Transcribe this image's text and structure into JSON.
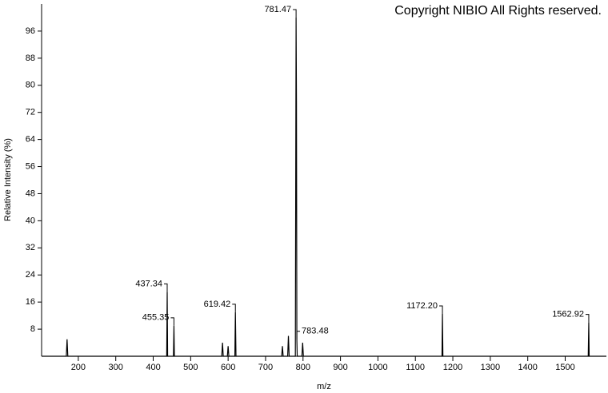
{
  "chart_data": {
    "type": "line",
    "watermark": "Copyright NIBIO All Rights reserved.",
    "x_label": "m/z",
    "y_label": "Relative Intensity (%)",
    "color": "#000000",
    "x": [
      102,
      168,
      170,
      172,
      436,
      437.34,
      438.5,
      454,
      455.35,
      456.5,
      583,
      585,
      587,
      598,
      600,
      602,
      618,
      619.42,
      621,
      743,
      745,
      747,
      759,
      761,
      763,
      779.5,
      780.5,
      781.47,
      782.5,
      783.48,
      784.5,
      797,
      799,
      801,
      1171,
      1172.2,
      1173.5,
      1561.5,
      1562.92,
      1564,
      1610
    ],
    "values": [
      0,
      0,
      5,
      0,
      0,
      19,
      0,
      0,
      9,
      0,
      0,
      4,
      0,
      0,
      3,
      0,
      0,
      13,
      0,
      0,
      3,
      0,
      0,
      6,
      0,
      0,
      50,
      100,
      75,
      5,
      0,
      0,
      4,
      0,
      0,
      12.5,
      0,
      0,
      10,
      0,
      0
    ],
    "annotations": [
      {
        "text": "437.34",
        "x": 437.34,
        "y": 19
      },
      {
        "text": "455.35",
        "x": 455.35,
        "y": 9
      },
      {
        "text": "619.42",
        "x": 619.42,
        "y": 13
      },
      {
        "text": "781.47",
        "x": 781.47,
        "y": 100
      },
      {
        "text": "783.48",
        "x": 783.48,
        "y": 5
      },
      {
        "text": "1172.20",
        "x": 1172.2,
        "y": 12.5
      },
      {
        "text": "1562.92",
        "x": 1562.92,
        "y": 10
      }
    ],
    "xlim": [
      102,
      1610
    ],
    "ylim": [
      0,
      104
    ],
    "xticks": [
      200,
      300,
      400,
      500,
      600,
      700,
      800,
      900,
      1000,
      1100,
      1200,
      1300,
      1400,
      1500
    ],
    "yticks": [
      8,
      16,
      24,
      32,
      40,
      48,
      56,
      64,
      72,
      80,
      88,
      96
    ]
  }
}
